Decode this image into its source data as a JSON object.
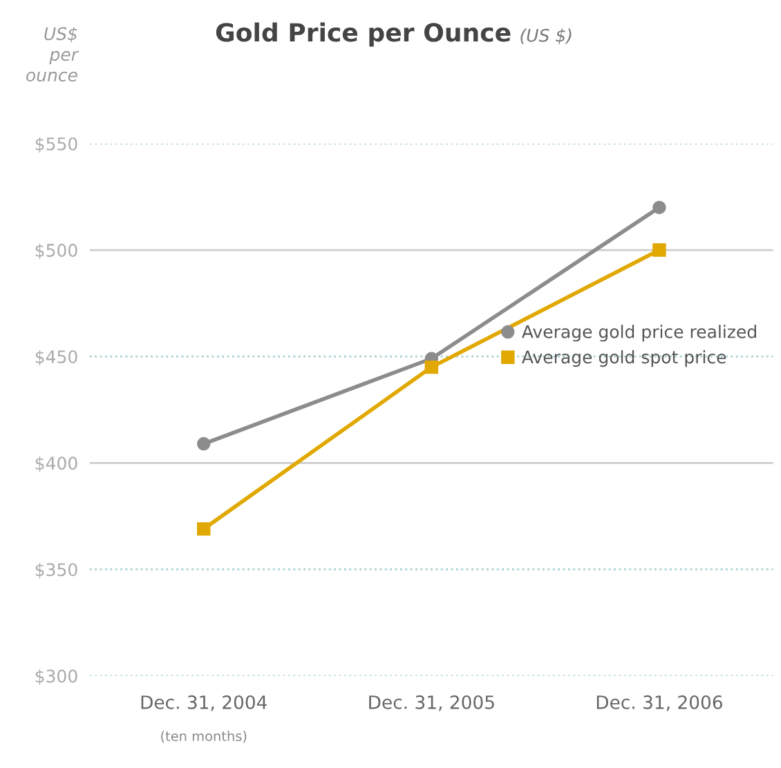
{
  "chart_data": {
    "type": "line",
    "title": "Gold Price per Ounce",
    "subtitle": "(US $)",
    "ylabel": "US$\nper\nounce",
    "categories": [
      "Dec. 31, 2004",
      "Dec. 31, 2005",
      "Dec. 31, 2006"
    ],
    "series": [
      {
        "name": "Average gold price realized",
        "color": "#8c8c8c",
        "marker": "circle",
        "values": [
          409,
          449,
          520
        ]
      },
      {
        "name": "Average gold spot price",
        "color": "#e0a800",
        "marker": "square",
        "values": [
          369,
          445,
          500
        ]
      }
    ],
    "ylim": [
      300,
      550
    ],
    "yticks": [
      {
        "value": 300,
        "label": "$300"
      },
      {
        "value": 350,
        "label": "$350"
      },
      {
        "value": 400,
        "label": "$400"
      },
      {
        "value": 450,
        "label": "$450"
      },
      {
        "value": 500,
        "label": "$500"
      },
      {
        "value": 550,
        "label": "$550"
      }
    ],
    "grid": "y",
    "legend": "right",
    "line_style": "solid",
    "annotations": [
      "(ten months)"
    ]
  }
}
